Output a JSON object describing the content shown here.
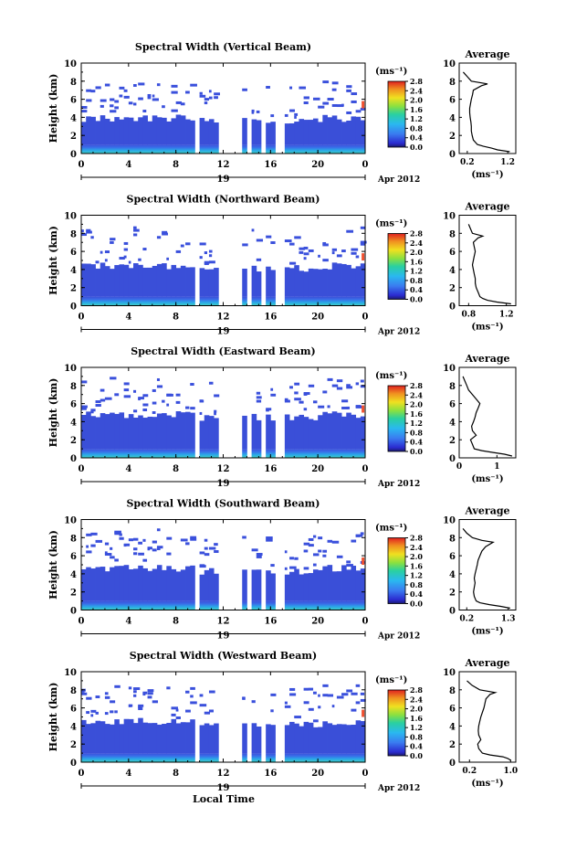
{
  "figure": {
    "xlabel": "Local Time",
    "date_label": "Apr 2012",
    "day_label": "19",
    "colorbar_unit": "(ms⁻¹)",
    "profile_title": "Average",
    "profile_xlabel": "(ms⁻¹)"
  },
  "chart_data": [
    {
      "type": "heatmap",
      "title": "Spectral Width (Vertical Beam)",
      "ylabel": "Height (km)",
      "x_ticks": [
        "0",
        "4",
        "8",
        "12",
        "16",
        "20",
        "0"
      ],
      "xlim": [
        0,
        24
      ],
      "y_ticks": [
        "0",
        "2",
        "4",
        "6",
        "8",
        "10"
      ],
      "ylim": [
        0,
        10
      ],
      "colorbar_ticks": [
        "0.0",
        "0.4",
        "0.8",
        "1.2",
        "1.6",
        "2.0",
        "2.4",
        "2.8"
      ],
      "colorbar_range": [
        0,
        2.8
      ],
      "data_gaps_hours": [
        [
          9.6,
          9.9
        ],
        [
          11.8,
          13.6
        ],
        [
          13.9,
          14.3
        ],
        [
          15.2,
          15.5
        ],
        [
          16.6,
          17.2
        ],
        [
          17.5,
          17.8
        ]
      ],
      "echo_top_km": 3.9,
      "average_profile": {
        "title": "Average",
        "x_ticks": [
          "0.2",
          "1.2"
        ],
        "x_tick_values": [
          0.2,
          1.2
        ],
        "xlim": [
          0,
          1.4
        ],
        "y_ticks": [
          "0",
          "2",
          "4",
          "6",
          "8",
          "10"
        ],
        "height_km": [
          0.2,
          0.4,
          0.6,
          0.8,
          1.0,
          1.5,
          2.0,
          2.5,
          3.0,
          3.5,
          4.0,
          4.5,
          5.0,
          5.5,
          6.0,
          6.5,
          7.0,
          7.5,
          7.7,
          8.0,
          8.5,
          9.0
        ],
        "width_ms": [
          1.25,
          0.95,
          0.8,
          0.6,
          0.45,
          0.35,
          0.32,
          0.3,
          0.3,
          0.29,
          0.27,
          0.26,
          0.26,
          0.28,
          0.3,
          0.33,
          0.35,
          0.55,
          0.7,
          0.3,
          0.2,
          0.1
        ]
      }
    },
    {
      "type": "heatmap",
      "title": "Spectral Width (Northward Beam)",
      "ylabel": "Height (km)",
      "x_ticks": [
        "0",
        "4",
        "8",
        "12",
        "16",
        "20",
        "0"
      ],
      "xlim": [
        0,
        24
      ],
      "y_ticks": [
        "0",
        "2",
        "4",
        "6",
        "8",
        "10"
      ],
      "ylim": [
        0,
        10
      ],
      "colorbar_ticks": [
        "0.0",
        "0.4",
        "0.8",
        "1.2",
        "1.6",
        "2.0",
        "2.4",
        "2.8"
      ],
      "colorbar_range": [
        0,
        2.8
      ],
      "data_gaps_hours": [
        [
          9.6,
          9.9
        ],
        [
          11.8,
          13.6
        ],
        [
          13.9,
          14.3
        ],
        [
          15.2,
          15.5
        ],
        [
          16.6,
          17.2
        ],
        [
          17.5,
          17.8
        ]
      ],
      "echo_top_km": 4.4,
      "average_profile": {
        "title": "Average",
        "x_ticks": [
          "0.8",
          "1.2"
        ],
        "x_tick_values": [
          0.8,
          1.2
        ],
        "xlim": [
          0.7,
          1.3
        ],
        "y_ticks": [
          "0",
          "2",
          "4",
          "6",
          "8",
          "10"
        ],
        "height_km": [
          0.2,
          0.4,
          0.6,
          0.8,
          1.0,
          1.5,
          2.0,
          2.5,
          3.0,
          3.5,
          4.0,
          4.5,
          5.0,
          5.5,
          6.0,
          6.5,
          7.0,
          7.5,
          7.7,
          8.0,
          8.5,
          9.0
        ],
        "width_ms": [
          1.25,
          1.1,
          1.0,
          0.95,
          0.92,
          0.9,
          0.88,
          0.87,
          0.87,
          0.86,
          0.85,
          0.84,
          0.85,
          0.86,
          0.87,
          0.86,
          0.85,
          0.9,
          0.95,
          0.84,
          0.82,
          0.8
        ]
      }
    },
    {
      "type": "heatmap",
      "title": "Spectral Width (Eastward Beam)",
      "ylabel": "Height (km)",
      "x_ticks": [
        "0",
        "4",
        "8",
        "12",
        "16",
        "20",
        "0"
      ],
      "xlim": [
        0,
        24
      ],
      "y_ticks": [
        "0",
        "2",
        "4",
        "6",
        "8",
        "10"
      ],
      "ylim": [
        0,
        10
      ],
      "colorbar_ticks": [
        "0.0",
        "0.4",
        "0.8",
        "1.2",
        "1.6",
        "2.0",
        "2.4",
        "2.8"
      ],
      "colorbar_range": [
        0,
        2.8
      ],
      "data_gaps_hours": [
        [
          9.6,
          9.9
        ],
        [
          11.8,
          13.6
        ],
        [
          13.9,
          14.3
        ],
        [
          15.2,
          15.5
        ],
        [
          16.6,
          17.2
        ],
        [
          17.5,
          17.8
        ]
      ],
      "echo_top_km": 4.8,
      "average_profile": {
        "title": "Average",
        "x_ticks": [
          "0",
          "1"
        ],
        "x_tick_values": [
          0,
          1
        ],
        "xlim": [
          0,
          1.5
        ],
        "y_ticks": [
          "0",
          "2",
          "4",
          "6",
          "8",
          "10"
        ],
        "height_km": [
          0.2,
          0.4,
          0.6,
          0.8,
          1.0,
          1.5,
          2.0,
          2.5,
          3.0,
          3.5,
          4.0,
          4.5,
          5.0,
          5.5,
          6.0,
          6.5,
          7.0,
          7.5,
          8.0,
          8.5,
          9.0
        ],
        "width_ms": [
          1.4,
          1.2,
          0.9,
          0.6,
          0.4,
          0.35,
          0.3,
          0.45,
          0.35,
          0.33,
          0.38,
          0.42,
          0.45,
          0.5,
          0.55,
          0.45,
          0.35,
          0.25,
          0.2,
          0.15,
          0.1
        ]
      }
    },
    {
      "type": "heatmap",
      "title": "Spectral Width (Southward Beam)",
      "ylabel": "Height (km)",
      "x_ticks": [
        "0",
        "4",
        "8",
        "12",
        "16",
        "20",
        "0"
      ],
      "xlim": [
        0,
        24
      ],
      "y_ticks": [
        "0",
        "2",
        "4",
        "6",
        "8",
        "10"
      ],
      "ylim": [
        0,
        10
      ],
      "colorbar_ticks": [
        "0.0",
        "0.4",
        "0.8",
        "1.2",
        "1.6",
        "2.0",
        "2.4",
        "2.8"
      ],
      "colorbar_range": [
        0,
        2.8
      ],
      "data_gaps_hours": [
        [
          9.6,
          9.9
        ],
        [
          11.8,
          13.6
        ],
        [
          13.9,
          14.3
        ],
        [
          15.2,
          15.5
        ],
        [
          16.6,
          17.2
        ],
        [
          17.5,
          17.8
        ]
      ],
      "echo_top_km": 4.6,
      "average_profile": {
        "title": "Average",
        "x_ticks": [
          "0.2",
          "1.3"
        ],
        "x_tick_values": [
          0.2,
          1.3
        ],
        "xlim": [
          0,
          1.5
        ],
        "y_ticks": [
          "0",
          "2",
          "4",
          "6",
          "8",
          "10"
        ],
        "height_km": [
          0.2,
          0.4,
          0.6,
          0.8,
          1.0,
          1.5,
          2.0,
          2.5,
          3.0,
          3.5,
          4.0,
          4.5,
          5.0,
          5.5,
          6.0,
          6.5,
          7.0,
          7.5,
          7.7,
          8.0,
          8.5,
          9.0
        ],
        "width_ms": [
          1.35,
          1.1,
          0.8,
          0.55,
          0.45,
          0.4,
          0.38,
          0.4,
          0.42,
          0.4,
          0.42,
          0.45,
          0.48,
          0.5,
          0.55,
          0.6,
          0.7,
          0.9,
          0.6,
          0.35,
          0.2,
          0.1
        ]
      }
    },
    {
      "type": "heatmap",
      "title": "Spectral Width (Westward Beam)",
      "ylabel": "Height (km)",
      "x_ticks": [
        "0",
        "4",
        "8",
        "12",
        "16",
        "20",
        "0"
      ],
      "xlim": [
        0,
        24
      ],
      "y_ticks": [
        "0",
        "2",
        "4",
        "6",
        "8",
        "10"
      ],
      "ylim": [
        0,
        10
      ],
      "colorbar_ticks": [
        "0.0",
        "0.4",
        "0.8",
        "1.2",
        "1.6",
        "2.0",
        "2.4",
        "2.8"
      ],
      "colorbar_range": [
        0,
        2.8
      ],
      "data_gaps_hours": [
        [
          9.6,
          9.9
        ],
        [
          11.8,
          13.6
        ],
        [
          13.9,
          14.3
        ],
        [
          15.2,
          15.5
        ],
        [
          16.6,
          17.2
        ],
        [
          17.5,
          17.8
        ]
      ],
      "echo_top_km": 4.5,
      "average_profile": {
        "title": "Average",
        "x_ticks": [
          "0.2",
          "1.0"
        ],
        "x_tick_values": [
          0.2,
          1.0
        ],
        "xlim": [
          0,
          1.1
        ],
        "y_ticks": [
          "0",
          "2",
          "4",
          "6",
          "8",
          "10"
        ],
        "height_km": [
          0.2,
          0.4,
          0.6,
          0.8,
          1.0,
          1.5,
          2.0,
          2.5,
          3.0,
          3.5,
          4.0,
          4.5,
          5.0,
          5.5,
          6.0,
          6.5,
          7.0,
          7.5,
          7.7,
          8.0,
          8.5,
          9.0
        ],
        "width_ms": [
          1.0,
          0.95,
          0.85,
          0.6,
          0.45,
          0.38,
          0.36,
          0.42,
          0.38,
          0.37,
          0.38,
          0.4,
          0.42,
          0.45,
          0.48,
          0.5,
          0.52,
          0.6,
          0.7,
          0.4,
          0.25,
          0.15
        ]
      }
    }
  ]
}
